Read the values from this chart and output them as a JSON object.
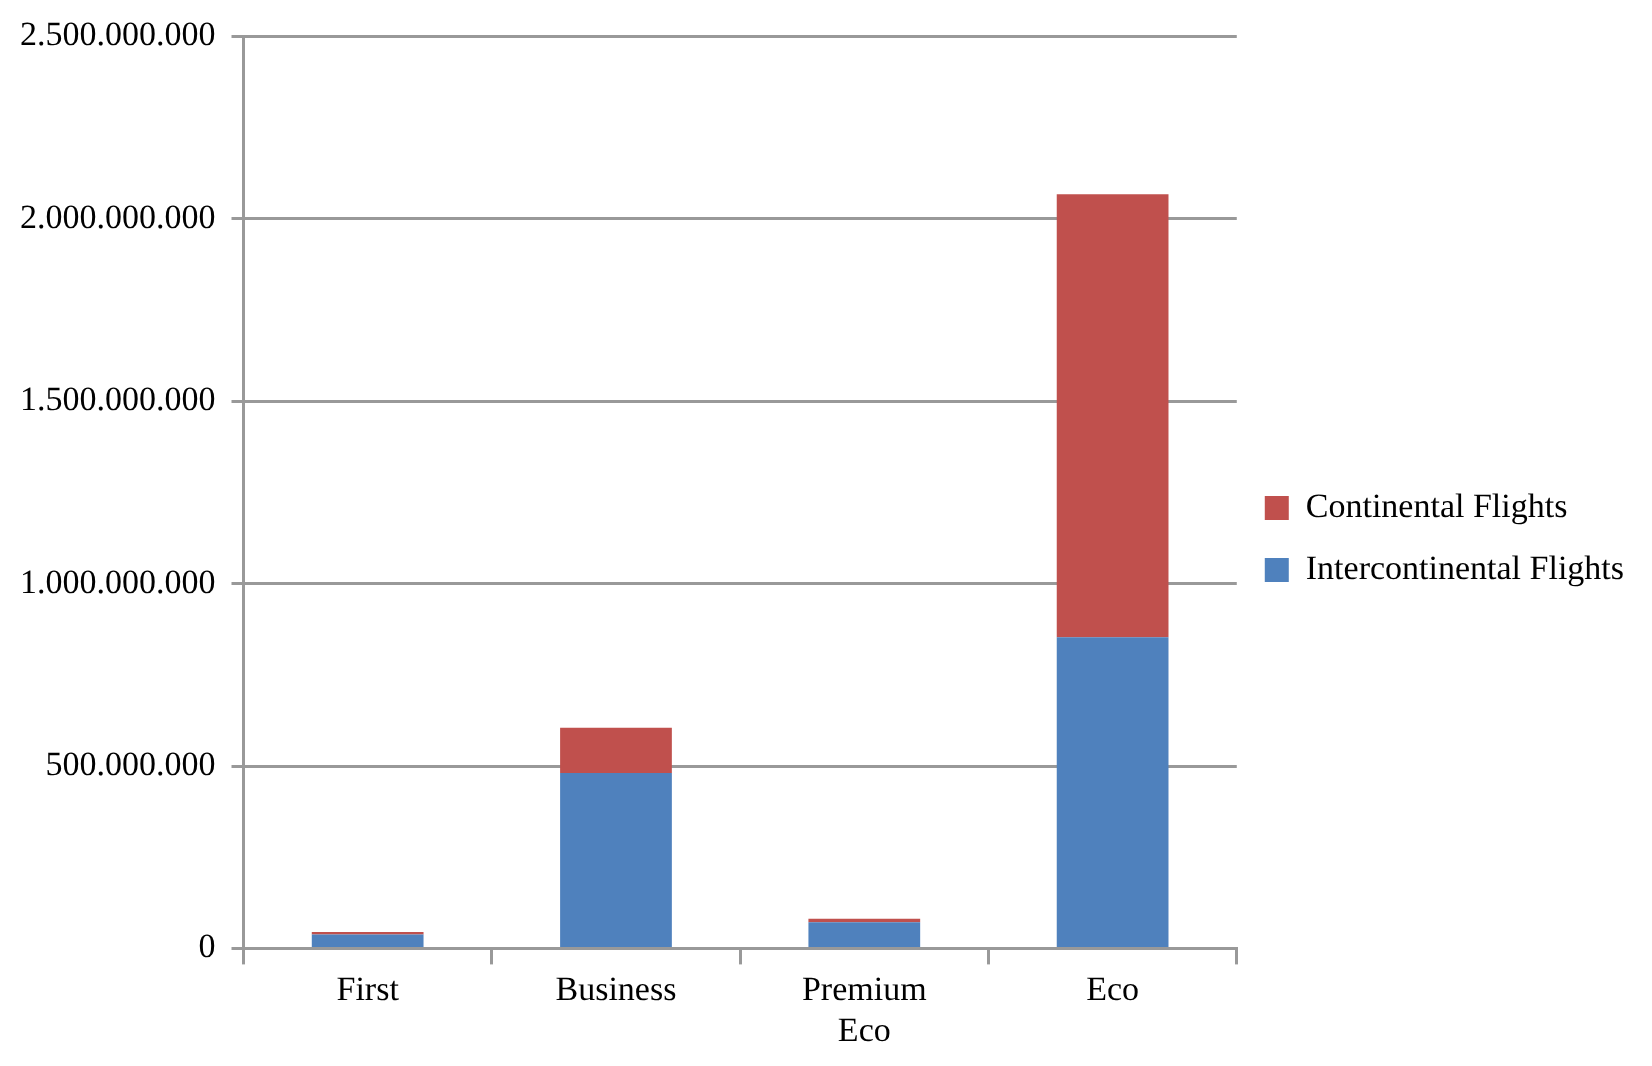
{
  "chart_data": {
    "type": "bar",
    "stacked": true,
    "categories": [
      "First",
      "Business",
      "Premium Eco",
      "Eco"
    ],
    "series": [
      {
        "name": "Intercontinental Flights",
        "color": "#4f81bd",
        "values": [
          38000000,
          481000000,
          72000000,
          853000000
        ]
      },
      {
        "name": "Continental Flights",
        "color": "#c0504d",
        "values": [
          7000000,
          124000000,
          9000000,
          1214000000
        ]
      }
    ],
    "ylim": [
      0,
      2500000000
    ],
    "yticks": [
      {
        "value": 0,
        "label": "0"
      },
      {
        "value": 500000000,
        "label": "500.000.000"
      },
      {
        "value": 1000000000,
        "label": "1.000.000.000"
      },
      {
        "value": 1500000000,
        "label": "1.500.000.000"
      },
      {
        "value": 2000000000,
        "label": "2.000.000.000"
      },
      {
        "value": 2500000000,
        "label": "2.500.000.000"
      }
    ],
    "grid": "y",
    "legend": "right"
  }
}
